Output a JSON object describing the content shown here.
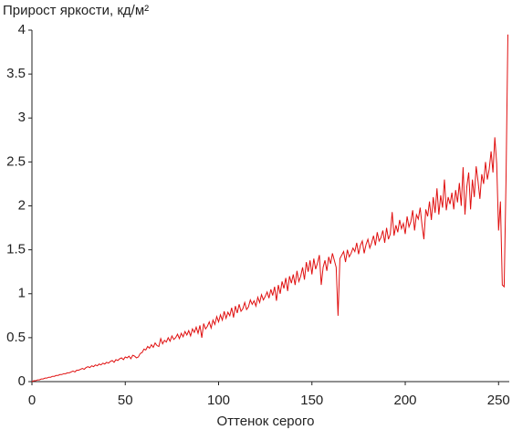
{
  "chart_data": {
    "type": "line",
    "title": "Прирост яркости, кд/м²",
    "x_label": "Оттенок серого",
    "x": [
      0,
      1,
      2,
      3,
      4,
      5,
      6,
      7,
      8,
      9,
      10,
      11,
      12,
      13,
      14,
      15,
      16,
      17,
      18,
      19,
      20,
      21,
      22,
      23,
      24,
      25,
      26,
      27,
      28,
      29,
      30,
      31,
      32,
      33,
      34,
      35,
      36,
      37,
      38,
      39,
      40,
      41,
      42,
      43,
      44,
      45,
      46,
      47,
      48,
      49,
      50,
      51,
      52,
      53,
      54,
      55,
      56,
      57,
      58,
      59,
      60,
      61,
      62,
      63,
      64,
      65,
      66,
      67,
      68,
      69,
      70,
      71,
      72,
      73,
      74,
      75,
      76,
      77,
      78,
      79,
      80,
      81,
      82,
      83,
      84,
      85,
      86,
      87,
      88,
      89,
      90,
      91,
      92,
      93,
      94,
      95,
      96,
      97,
      98,
      99,
      100,
      101,
      102,
      103,
      104,
      105,
      106,
      107,
      108,
      109,
      110,
      111,
      112,
      113,
      114,
      115,
      116,
      117,
      118,
      119,
      120,
      121,
      122,
      123,
      124,
      125,
      126,
      127,
      128,
      129,
      130,
      131,
      132,
      133,
      134,
      135,
      136,
      137,
      138,
      139,
      140,
      141,
      142,
      143,
      144,
      145,
      146,
      147,
      148,
      149,
      150,
      151,
      152,
      153,
      154,
      155,
      156,
      157,
      158,
      159,
      160,
      161,
      162,
      163,
      164,
      165,
      166,
      167,
      168,
      169,
      170,
      171,
      172,
      173,
      174,
      175,
      176,
      177,
      178,
      179,
      180,
      181,
      182,
      183,
      184,
      185,
      186,
      187,
      188,
      189,
      190,
      191,
      192,
      193,
      194,
      195,
      196,
      197,
      198,
      199,
      200,
      201,
      202,
      203,
      204,
      205,
      206,
      207,
      208,
      209,
      210,
      211,
      212,
      213,
      214,
      215,
      216,
      217,
      218,
      219,
      220,
      221,
      222,
      223,
      224,
      225,
      226,
      227,
      228,
      229,
      230,
      231,
      232,
      233,
      234,
      235,
      236,
      237,
      238,
      239,
      240,
      241,
      242,
      243,
      244,
      245,
      246,
      247,
      248,
      249,
      250,
      251,
      252,
      253,
      254,
      255
    ],
    "series": [
      {
        "name": "Прирост яркости",
        "color": "#e01010",
        "values": [
          0,
          0.01,
          0.01,
          0.02,
          0.02,
          0.03,
          0.03,
          0.04,
          0.04,
          0.05,
          0.05,
          0.06,
          0.06,
          0.07,
          0.07,
          0.08,
          0.08,
          0.09,
          0.09,
          0.1,
          0.1,
          0.11,
          0.12,
          0.11,
          0.13,
          0.13,
          0.14,
          0.15,
          0.14,
          0.16,
          0.17,
          0.16,
          0.18,
          0.17,
          0.19,
          0.18,
          0.2,
          0.19,
          0.21,
          0.2,
          0.22,
          0.21,
          0.23,
          0.24,
          0.22,
          0.25,
          0.24,
          0.26,
          0.27,
          0.25,
          0.28,
          0.27,
          0.29,
          0.26,
          0.3,
          0.29,
          0.27,
          0.28,
          0.32,
          0.33,
          0.37,
          0.36,
          0.4,
          0.38,
          0.42,
          0.39,
          0.44,
          0.41,
          0.4,
          0.49,
          0.43,
          0.47,
          0.45,
          0.5,
          0.46,
          0.52,
          0.48,
          0.5,
          0.54,
          0.49,
          0.55,
          0.51,
          0.57,
          0.53,
          0.58,
          0.52,
          0.6,
          0.56,
          0.62,
          0.55,
          0.64,
          0.5,
          0.66,
          0.6,
          0.63,
          0.68,
          0.61,
          0.7,
          0.65,
          0.74,
          0.68,
          0.76,
          0.7,
          0.8,
          0.72,
          0.79,
          0.75,
          0.84,
          0.73,
          0.86,
          0.78,
          0.88,
          0.8,
          0.83,
          0.9,
          0.82,
          0.85,
          0.93,
          0.88,
          0.92,
          0.86,
          0.96,
          0.9,
          0.99,
          0.93,
          0.97,
          1.02,
          0.95,
          1.05,
          0.98,
          1.08,
          0.92,
          1.1,
          1.0,
          1.14,
          1.06,
          1.18,
          1.03,
          1.2,
          1.12,
          1.22,
          1.1,
          1.26,
          1.14,
          1.2,
          1.3,
          1.16,
          1.36,
          1.25,
          1.38,
          1.22,
          1.4,
          1.28,
          1.35,
          1.44,
          1.1,
          1.3,
          1.38,
          1.26,
          1.42,
          1.34,
          1.46,
          1.38,
          1.3,
          0.75,
          1.4,
          1.44,
          1.48,
          1.36,
          1.5,
          1.42,
          1.46,
          1.52,
          1.48,
          1.58,
          1.45,
          1.55,
          1.6,
          1.46,
          1.56,
          1.62,
          1.52,
          1.58,
          1.66,
          1.55,
          1.7,
          1.6,
          1.64,
          1.72,
          1.58,
          1.75,
          1.62,
          1.68,
          1.93,
          1.66,
          1.78,
          1.7,
          1.84,
          1.74,
          1.8,
          1.68,
          1.88,
          1.76,
          1.82,
          1.95,
          1.72,
          1.9,
          1.85,
          1.98,
          1.78,
          1.62,
          1.96,
          1.88,
          2.05,
          1.84,
          2.1,
          1.92,
          2.2,
          1.9,
          2.12,
          1.98,
          2.3,
          1.95,
          2.1,
          2.02,
          2.15,
          1.96,
          2.18,
          2.04,
          2.26,
          2.0,
          2.44,
          1.9,
          2.22,
          2.38,
          1.96,
          2.3,
          2.1,
          2.45,
          2.28,
          2.08,
          2.36,
          2.25,
          2.5,
          2.3,
          2.42,
          2.62,
          2.38,
          2.78,
          2.48,
          1.72,
          2.05,
          1.1,
          1.08,
          2.3,
          3.95
        ]
      }
    ],
    "xlim": [
      0,
      255
    ],
    "xticks": [
      0,
      50,
      100,
      150,
      200,
      250
    ],
    "ylim": [
      0,
      4
    ],
    "yticks": [
      0,
      0.5,
      1,
      1.5,
      2,
      2.5,
      3,
      3.5,
      4
    ],
    "grid": false
  }
}
